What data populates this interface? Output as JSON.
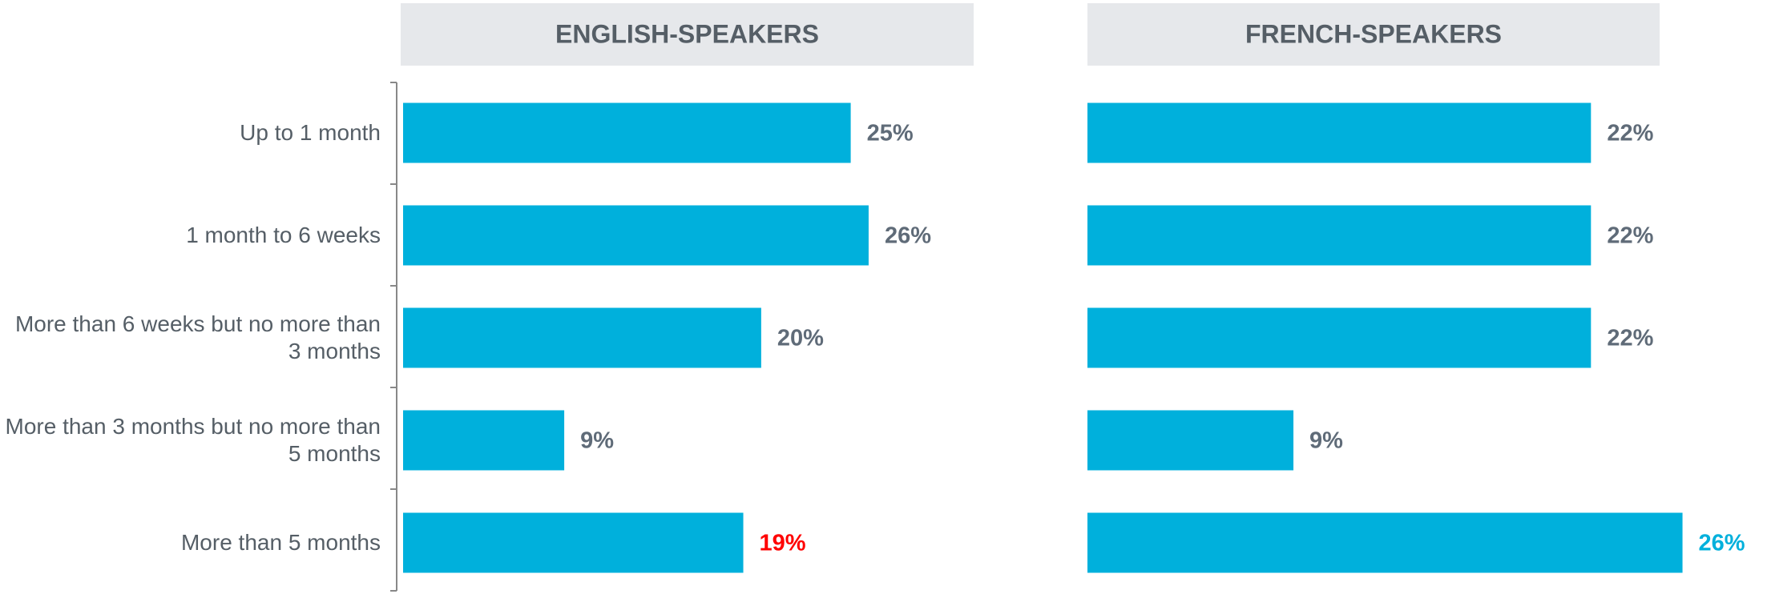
{
  "chart_data": [
    {
      "type": "hbar",
      "title": "ENGLISH-SPEAKERS",
      "categories": [
        "Up to 1 month",
        "1 month to 6 weeks",
        "More than 6 weeks but no more than 3 months",
        "More than 3 months but no more than 5 months",
        "More than 5 months"
      ],
      "values": [
        25,
        26,
        20,
        9,
        19
      ],
      "value_labels": [
        "25%",
        "26%",
        "20%",
        "9%",
        "19%"
      ],
      "label_colors": [
        "#5f6b78",
        "#5f6b78",
        "#5f6b78",
        "#5f6b78",
        "#ff0000"
      ],
      "color": "#00b0dc",
      "xlim": [
        0,
        32
      ]
    },
    {
      "type": "hbar",
      "title": "FRENCH-SPEAKERS",
      "values": [
        22,
        22,
        22,
        9,
        26
      ],
      "value_labels": [
        "22%",
        "22%",
        "22%",
        "9%",
        "26%"
      ],
      "label_colors": [
        "#5f6b78",
        "#5f6b78",
        "#5f6b78",
        "#5f6b78",
        "#00b0dc"
      ],
      "color": "#00b0dc",
      "xlim": [
        0,
        25
      ]
    }
  ]
}
